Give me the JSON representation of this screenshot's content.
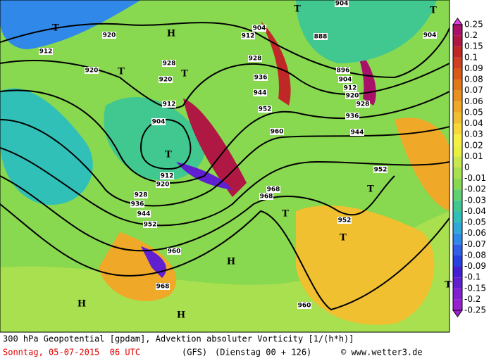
{
  "map": {
    "contour_labels": [
      "912",
      "920",
      "920",
      "928",
      "920",
      "912",
      "904",
      "912",
      "920",
      "928",
      "936",
      "944",
      "952",
      "960",
      "968",
      "904",
      "912",
      "888",
      "928",
      "896",
      "904",
      "936",
      "944",
      "912",
      "920",
      "928",
      "952",
      "936",
      "944",
      "960",
      "952",
      "968",
      "968",
      "952",
      "960",
      "904",
      "904"
    ],
    "pressure_centers": [
      "H",
      "H",
      "H",
      "H",
      "T",
      "T",
      "T",
      "T",
      "T",
      "T",
      "T",
      "T",
      "T",
      "T"
    ],
    "colorbar": {
      "labels": [
        "0.25",
        "0.2",
        "0.15",
        "0.1",
        "0.09",
        "0.08",
        "0.07",
        "0.06",
        "0.05",
        "0.04",
        "0.03",
        "0.02",
        "0.01",
        "0",
        "-0.01",
        "-0.02",
        "-0.03",
        "-0.04",
        "-0.05",
        "-0.06",
        "-0.07",
        "-0.08",
        "-0.09",
        "-0.1",
        "-0.15",
        "-0.2",
        "-0.25"
      ],
      "colors": [
        "#a8106a",
        "#b01844",
        "#c02828",
        "#d04020",
        "#d85a18",
        "#e07818",
        "#e89020",
        "#f0a828",
        "#f0c030",
        "#f8d838",
        "#f8f040",
        "#e8f040",
        "#c8e850",
        "#a8e050",
        "#88d850",
        "#60d070",
        "#40c890",
        "#30c0b8",
        "#30a8d8",
        "#3088e8",
        "#3060e8",
        "#2840e0",
        "#4020d0",
        "#6020d0",
        "#8020d0",
        "#9820d0"
      ]
    },
    "footer": {
      "title": "300 hPa Geopotential [gpdam], Advektion absoluter Vorticity [1/(h*h)]",
      "date": "Sonntag, 05-07-2015  06 UTC",
      "model": "(GFS)",
      "run": "(Dienstag 00 + 126)",
      "source": "© www.wetter3.de"
    }
  }
}
